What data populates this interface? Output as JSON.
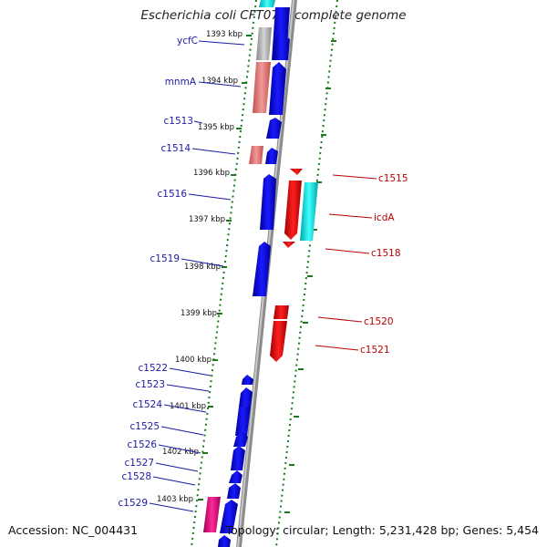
{
  "title": "Escherichia coli CFT073, complete genome",
  "footer": {
    "accession": "Accession: NC_004431",
    "summary": "Topology: circular; Length: 5,231,428 bp; Genes: 5,454"
  },
  "colors": {
    "forward_gene": "#0000e6",
    "reverse_gene": "#e60000",
    "pseudo_gene": "#e88080",
    "trna": "#00e6e6",
    "other": "#b4b4b4",
    "magenta": "#e6007a",
    "ruler_ticks": "#1a7a1a",
    "left_labels": "#1a1aa6",
    "right_labels": "#b80000"
  },
  "ruler_labels": [
    "1393 kbp",
    "1394 kbp",
    "1395 kbp",
    "1396 kbp",
    "1397 kbp",
    "1398 kbp",
    "1399 kbp",
    "1400 kbp",
    "1401 kbp",
    "1402 kbp",
    "1403 kbp"
  ],
  "genes_left": [
    "ycfC",
    "mnmA",
    "c1513",
    "c1514",
    "c1516",
    "c1519",
    "c1522",
    "c1523",
    "c1524",
    "c1525",
    "c1526",
    "c1527",
    "c1528",
    "c1529"
  ],
  "genes_right": [
    "c1515",
    "icdA",
    "c1518",
    "c1520",
    "c1521"
  ]
}
